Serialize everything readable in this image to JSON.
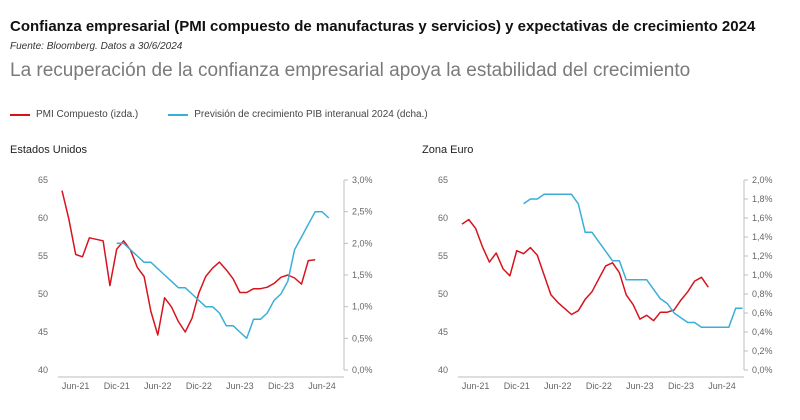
{
  "header": {
    "title": "Confianza empresarial (PMI compuesto de manufacturas y servicios) y expectativas de crecimiento 2024",
    "source": "Fuente: Bloomberg. Datos a 30/6/2024",
    "subtitle": "La recuperación de la confianza empresarial apoya la estabilidad del crecimiento"
  },
  "legend": {
    "pmi": "PMI Compuesto (izda.)",
    "gdp": "Previsión de crecimiento PIB interanual 2024 (dcha.)"
  },
  "colors": {
    "pmi": "#d7141e",
    "gdp": "#3aaed8"
  },
  "chart_data": [
    {
      "type": "line",
      "title": "Estados Unidos",
      "x_start": "2021-04",
      "x_end": "2024-06",
      "x_ticks": [
        {
          "label": "Jun-21",
          "index": 2
        },
        {
          "label": "Dic-21",
          "index": 8
        },
        {
          "label": "Jun-22",
          "index": 14
        },
        {
          "label": "Dic-22",
          "index": 20
        },
        {
          "label": "Jun-23",
          "index": 26
        },
        {
          "label": "Dic-23",
          "index": 32
        },
        {
          "label": "Jun-24",
          "index": 38
        }
      ],
      "y_left": {
        "min": 40,
        "max": 65,
        "ticks": [
          "40",
          "45",
          "50",
          "55",
          "60",
          "65"
        ]
      },
      "y_right": {
        "min": 0,
        "max": 3,
        "ticks": [
          "0,0%",
          "0,5%",
          "1,0%",
          "1,5%",
          "2,0%",
          "2,5%",
          "3,0%"
        ]
      },
      "series": [
        {
          "name": "PMI Compuesto (izda.)",
          "axis": "left",
          "start_index": 0,
          "values": [
            63.6,
            59.9,
            55.2,
            54.9,
            57.4,
            57.2,
            57.0,
            51.1,
            55.9,
            57.0,
            55.8,
            53.5,
            52.3,
            47.7,
            44.6,
            49.5,
            48.3,
            46.4,
            45.0,
            46.8,
            50.1,
            52.3,
            53.4,
            54.2,
            53.2,
            52.0,
            50.2,
            50.2,
            50.7,
            50.7,
            50.9,
            51.4,
            52.2,
            52.5,
            52.1,
            51.3,
            54.4,
            54.5
          ]
        },
        {
          "name": "Previsión de crecimiento PIB interanual 2024 (dcha.)",
          "axis": "right",
          "start_index": 8,
          "values": [
            2.0,
            2.0,
            1.9,
            1.8,
            1.7,
            1.7,
            1.6,
            1.5,
            1.4,
            1.3,
            1.3,
            1.2,
            1.1,
            1.0,
            1.0,
            0.9,
            0.7,
            0.7,
            0.6,
            0.5,
            0.8,
            0.8,
            0.9,
            1.1,
            1.2,
            1.4,
            1.9,
            2.1,
            2.3,
            2.5,
            2.5,
            2.4
          ]
        }
      ]
    },
    {
      "type": "line",
      "title": "Zona Euro",
      "x_start": "2021-04",
      "x_end": "2024-06",
      "x_ticks": [
        {
          "label": "Jun-21",
          "index": 2
        },
        {
          "label": "Dic-21",
          "index": 8
        },
        {
          "label": "Jun-22",
          "index": 14
        },
        {
          "label": "Dic-22",
          "index": 20
        },
        {
          "label": "Jun-23",
          "index": 26
        },
        {
          "label": "Dic-23",
          "index": 32
        },
        {
          "label": "Jun-24",
          "index": 38
        }
      ],
      "y_left": {
        "min": 40,
        "max": 65,
        "ticks": [
          "40",
          "45",
          "50",
          "55",
          "60",
          "65"
        ]
      },
      "y_right": {
        "min": 0,
        "max": 2,
        "ticks": [
          "0,0%",
          "0,2%",
          "0,4%",
          "0,6%",
          "0,8%",
          "1,0%",
          "1,2%",
          "1,4%",
          "1,6%",
          "1,8%",
          "2,0%"
        ]
      },
      "series": [
        {
          "name": "PMI Compuesto (izda.)",
          "axis": "left",
          "start_index": 0,
          "values": [
            59.2,
            59.8,
            58.6,
            56.2,
            54.2,
            55.4,
            53.3,
            52.4,
            55.7,
            55.3,
            56.1,
            55.1,
            52.5,
            49.9,
            48.9,
            48.1,
            47.3,
            47.8,
            49.3,
            50.3,
            52.0,
            53.7,
            54.1,
            52.8,
            49.9,
            48.6,
            46.7,
            47.2,
            46.5,
            47.6,
            47.6,
            47.9,
            49.2,
            50.3,
            51.7,
            52.2,
            50.9
          ]
        },
        {
          "name": "Previsión de crecimiento PIB interanual 2024 (dcha.)",
          "axis": "right",
          "start_index": 9,
          "values": [
            1.75,
            1.8,
            1.8,
            1.85,
            1.85,
            1.85,
            1.85,
            1.85,
            1.75,
            1.45,
            1.45,
            1.35,
            1.25,
            1.15,
            1.15,
            0.95,
            0.95,
            0.95,
            0.95,
            0.85,
            0.75,
            0.7,
            0.6,
            0.55,
            0.5,
            0.5,
            0.45,
            0.45,
            0.45,
            0.45,
            0.45,
            0.65,
            0.65
          ]
        }
      ]
    }
  ]
}
